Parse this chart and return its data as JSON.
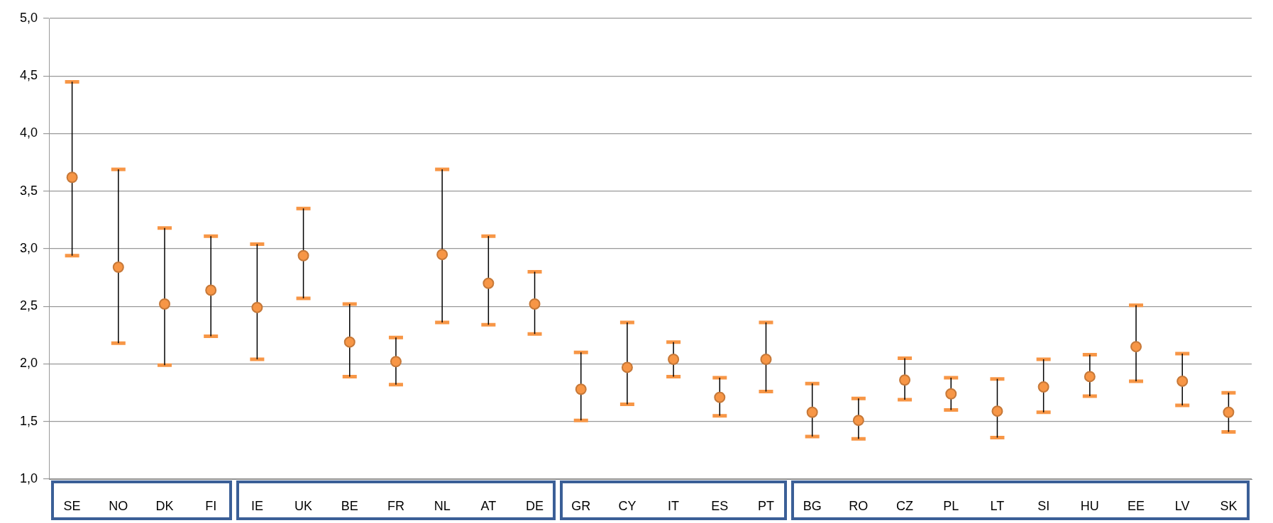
{
  "chart_data": {
    "type": "scatter",
    "categories": [
      "SE",
      "NO",
      "DK",
      "FI",
      "IE",
      "UK",
      "BE",
      "FR",
      "NL",
      "AT",
      "DE",
      "GR",
      "CY",
      "IT",
      "ES",
      "PT",
      "BG",
      "RO",
      "CZ",
      "PL",
      "LT",
      "SI",
      "HU",
      "EE",
      "LV",
      "SK"
    ],
    "series": [
      {
        "color": "#f79646",
        "values": [
          3.62,
          2.84,
          2.52,
          2.64,
          2.49,
          2.94,
          2.19,
          2.02,
          2.95,
          2.7,
          2.52,
          1.78,
          1.97,
          2.04,
          1.71,
          2.04,
          1.58,
          1.51,
          1.86,
          1.74,
          1.59,
          1.8,
          1.89,
          2.15,
          1.85,
          1.58
        ],
        "errors": [
          [
            2.94,
            4.45
          ],
          [
            2.18,
            3.69
          ],
          [
            1.99,
            3.18
          ],
          [
            2.24,
            3.11
          ],
          [
            2.04,
            3.04
          ],
          [
            2.57,
            3.35
          ],
          [
            1.89,
            2.52
          ],
          [
            1.82,
            2.23
          ],
          [
            2.36,
            3.69
          ],
          [
            2.34,
            3.11
          ],
          [
            2.26,
            2.8
          ],
          [
            1.51,
            2.1
          ],
          [
            1.65,
            2.36
          ],
          [
            1.89,
            2.19
          ],
          [
            1.55,
            1.88
          ],
          [
            1.76,
            2.36
          ],
          [
            1.37,
            1.83
          ],
          [
            1.35,
            1.7
          ],
          [
            1.69,
            2.05
          ],
          [
            1.6,
            1.88
          ],
          [
            1.36,
            1.87
          ],
          [
            1.58,
            2.04
          ],
          [
            1.72,
            2.08
          ],
          [
            1.85,
            2.51
          ],
          [
            1.64,
            2.09
          ],
          [
            1.41,
            1.75
          ]
        ]
      }
    ],
    "ylim": [
      1,
      5
    ],
    "yticks": [
      {
        "value": 1,
        "label": "1,0"
      },
      {
        "value": 1.5,
        "label": "1,5"
      },
      {
        "value": 2,
        "label": "2,0"
      },
      {
        "value": 2.5,
        "label": "2,5"
      },
      {
        "value": 3,
        "label": "3,0"
      },
      {
        "value": 3.5,
        "label": "3,5"
      },
      {
        "value": 4,
        "label": "4,0"
      },
      {
        "value": 4.5,
        "label": "4,5"
      },
      {
        "value": 5,
        "label": "5,0"
      }
    ],
    "grid": "y",
    "marker": "circle",
    "legend": false
  }
}
